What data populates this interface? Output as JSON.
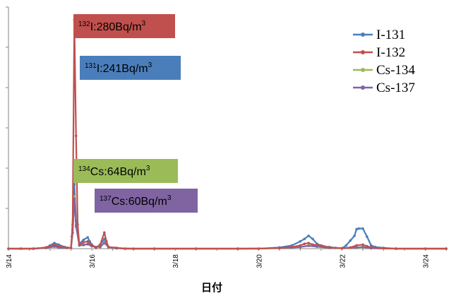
{
  "chart_data": {
    "type": "line",
    "title": "",
    "xlabel": "日付",
    "ylabel": "",
    "x_tick_labels": [
      "3/14",
      "3/16",
      "3/18",
      "3/20",
      "3/22",
      "3/24"
    ],
    "legend_position": "top-right",
    "grid": false,
    "series": [
      {
        "name": "I-131",
        "color": "#4a7ebb",
        "points": [
          [
            0,
            0
          ],
          [
            0.3,
            0
          ],
          [
            0.6,
            0
          ],
          [
            0.9,
            3
          ],
          [
            1.0,
            8
          ],
          [
            1.1,
            14
          ],
          [
            1.2,
            10
          ],
          [
            1.35,
            4
          ],
          [
            1.5,
            2
          ],
          [
            1.52,
            30
          ],
          [
            1.58,
            160
          ],
          [
            1.62,
            70
          ],
          [
            1.7,
            12
          ],
          [
            1.8,
            22
          ],
          [
            1.9,
            28
          ],
          [
            1.95,
            18
          ],
          [
            2.0,
            10
          ],
          [
            2.1,
            2
          ],
          [
            2.2,
            10
          ],
          [
            2.3,
            24
          ],
          [
            2.35,
            12
          ],
          [
            2.4,
            4
          ],
          [
            2.55,
            2
          ],
          [
            2.8,
            0
          ],
          [
            3.5,
            0
          ],
          [
            4.5,
            0
          ],
          [
            5.5,
            0
          ],
          [
            6.0,
            0
          ],
          [
            6.5,
            3
          ],
          [
            6.8,
            8
          ],
          [
            7.0,
            18
          ],
          [
            7.1,
            24
          ],
          [
            7.2,
            32
          ],
          [
            7.3,
            24
          ],
          [
            7.4,
            12
          ],
          [
            7.55,
            6
          ],
          [
            7.7,
            4
          ],
          [
            7.85,
            2
          ],
          [
            8.0,
            1
          ],
          [
            8.1,
            8
          ],
          [
            8.2,
            20
          ],
          [
            8.3,
            32
          ],
          [
            8.35,
            48
          ],
          [
            8.4,
            50
          ],
          [
            8.5,
            50
          ],
          [
            8.6,
            30
          ],
          [
            8.7,
            8
          ],
          [
            8.8,
            4
          ],
          [
            9.0,
            2
          ],
          [
            9.3,
            0
          ],
          [
            10.0,
            0
          ],
          [
            10.5,
            0
          ]
        ]
      },
      {
        "name": "I-132",
        "color": "#c0504d",
        "points": [
          [
            0,
            0
          ],
          [
            0.3,
            0
          ],
          [
            0.6,
            0
          ],
          [
            0.9,
            3
          ],
          [
            1.1,
            10
          ],
          [
            1.2,
            6
          ],
          [
            1.4,
            2
          ],
          [
            1.5,
            2
          ],
          [
            1.54,
            60
          ],
          [
            1.58,
            568
          ],
          [
            1.62,
            280
          ],
          [
            1.66,
            60
          ],
          [
            1.7,
            10
          ],
          [
            1.8,
            16
          ],
          [
            1.9,
            18
          ],
          [
            2.0,
            8
          ],
          [
            2.1,
            2
          ],
          [
            2.2,
            10
          ],
          [
            2.3,
            40
          ],
          [
            2.35,
            18
          ],
          [
            2.4,
            4
          ],
          [
            2.6,
            2
          ],
          [
            2.8,
            0
          ],
          [
            3.5,
            0
          ],
          [
            4.5,
            0
          ],
          [
            5.5,
            0
          ],
          [
            6.0,
            0
          ],
          [
            6.5,
            2
          ],
          [
            6.8,
            4
          ],
          [
            7.0,
            8
          ],
          [
            7.1,
            12
          ],
          [
            7.2,
            14
          ],
          [
            7.3,
            10
          ],
          [
            7.5,
            8
          ],
          [
            7.7,
            3
          ],
          [
            8.0,
            1
          ],
          [
            8.2,
            3
          ],
          [
            8.35,
            8
          ],
          [
            8.5,
            10
          ],
          [
            8.6,
            6
          ],
          [
            8.7,
            3
          ],
          [
            9.0,
            1
          ],
          [
            9.3,
            0
          ],
          [
            10.0,
            0
          ],
          [
            10.5,
            0
          ]
        ]
      },
      {
        "name": "Cs-134",
        "color": "#9bbb59",
        "points": [
          [
            0,
            0
          ],
          [
            0.6,
            0
          ],
          [
            0.9,
            2
          ],
          [
            1.1,
            6
          ],
          [
            1.2,
            4
          ],
          [
            1.5,
            2
          ],
          [
            1.54,
            40
          ],
          [
            1.58,
            130
          ],
          [
            1.62,
            60
          ],
          [
            1.7,
            8
          ],
          [
            1.8,
            10
          ],
          [
            1.9,
            12
          ],
          [
            2.0,
            6
          ],
          [
            2.2,
            4
          ],
          [
            2.3,
            16
          ],
          [
            2.4,
            4
          ],
          [
            2.6,
            1
          ],
          [
            3.0,
            0
          ],
          [
            5.5,
            0
          ],
          [
            6.5,
            1
          ],
          [
            7.0,
            4
          ],
          [
            7.2,
            8
          ],
          [
            7.4,
            5
          ],
          [
            7.7,
            2
          ],
          [
            8.0,
            1
          ],
          [
            8.35,
            3
          ],
          [
            8.5,
            4
          ],
          [
            8.7,
            1
          ],
          [
            9.3,
            0
          ],
          [
            10.5,
            0
          ]
        ]
      },
      {
        "name": "Cs-137",
        "color": "#8064a2",
        "points": [
          [
            0,
            0
          ],
          [
            0.6,
            0
          ],
          [
            0.9,
            2
          ],
          [
            1.1,
            5
          ],
          [
            1.2,
            3
          ],
          [
            1.5,
            2
          ],
          [
            1.54,
            40
          ],
          [
            1.58,
            124
          ],
          [
            1.62,
            55
          ],
          [
            1.7,
            8
          ],
          [
            1.8,
            9
          ],
          [
            1.9,
            11
          ],
          [
            2.0,
            6
          ],
          [
            2.2,
            4
          ],
          [
            2.3,
            14
          ],
          [
            2.4,
            4
          ],
          [
            2.6,
            1
          ],
          [
            3.0,
            0
          ],
          [
            5.5,
            0
          ],
          [
            6.5,
            1
          ],
          [
            7.0,
            4
          ],
          [
            7.2,
            7
          ],
          [
            7.4,
            5
          ],
          [
            7.7,
            2
          ],
          [
            8.0,
            1
          ],
          [
            8.35,
            3
          ],
          [
            8.5,
            4
          ],
          [
            8.7,
            1
          ],
          [
            9.3,
            0
          ],
          [
            10.5,
            0
          ]
        ]
      }
    ],
    "annotations": [
      {
        "sup": "132",
        "label": "I:280Bq/m",
        "unit_sup": "3",
        "color": "#c0504d",
        "x": 1.6,
        "y": 560
      },
      {
        "sup": "131",
        "label": "I:241Bq/m",
        "unit_sup": "3",
        "color": "#4a7ebb",
        "x": 1.75,
        "y": 480
      },
      {
        "sup": "134",
        "label": "Cs:64Bq/m",
        "unit_sup": "3",
        "color": "#9bbb59",
        "x": 1.65,
        "y": 190
      },
      {
        "sup": "137",
        "label": "Cs:60Bq/m",
        "unit_sup": "3",
        "color": "#8064a2",
        "x": 2.15,
        "y": 120
      }
    ]
  }
}
